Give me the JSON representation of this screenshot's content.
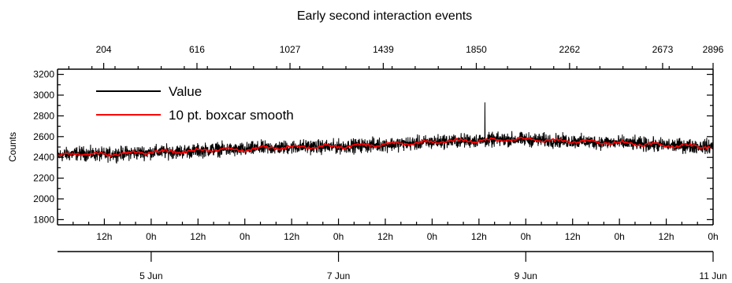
{
  "chart_data": {
    "type": "line",
    "title": "Early second interaction events",
    "ylabel": "Counts",
    "ylim": [
      1750,
      3250
    ],
    "y_ticks": [
      1800,
      2000,
      2200,
      2400,
      2600,
      2800,
      3000,
      3200
    ],
    "y_minor_step": 100,
    "top_axis": {
      "xlim": [
        0,
        2896
      ],
      "ticks": [
        204,
        616,
        1027,
        1439,
        1850,
        2262,
        2673,
        2896
      ]
    },
    "bottom_axis": {
      "time_range": [
        "4 Jun 00:00",
        "11 Jun 00:00"
      ],
      "hour_labels": [
        "12h",
        "0h",
        "12h",
        "0h",
        "12h",
        "0h",
        "12h",
        "0h",
        "12h",
        "0h",
        "12h",
        "0h",
        "12h",
        "0h"
      ],
      "day_labels": [
        "5 Jun",
        "7 Jun",
        "9 Jun",
        "11 Jun"
      ]
    },
    "legend": {
      "position": "top-left"
    },
    "colors": {
      "value": "#000000",
      "smooth": "#ff0000"
    },
    "series": [
      {
        "name": "Value",
        "x": [
          0,
          100,
          200,
          300,
          400,
          500,
          600,
          700,
          800,
          900,
          1000,
          1100,
          1200,
          1300,
          1400,
          1500,
          1600,
          1700,
          1800,
          1900,
          2000,
          2100,
          2200,
          2300,
          2400,
          2500,
          2600,
          2700,
          2800,
          2896
        ],
        "y": [
          2420,
          2440,
          2425,
          2440,
          2450,
          2455,
          2460,
          2480,
          2470,
          2490,
          2495,
          2505,
          2500,
          2510,
          2520,
          2530,
          2540,
          2555,
          2560,
          2565,
          2575,
          2570,
          2560,
          2555,
          2545,
          2540,
          2525,
          2515,
          2510,
          2505
        ],
        "noise_amplitude": 70,
        "spike": {
          "x": 1888,
          "y": 2930
        }
      },
      {
        "name": "10 pt. boxcar smooth",
        "x": [
          0,
          100,
          200,
          300,
          400,
          500,
          600,
          700,
          800,
          900,
          1000,
          1100,
          1200,
          1300,
          1400,
          1500,
          1600,
          1700,
          1800,
          1900,
          2000,
          2100,
          2200,
          2300,
          2400,
          2500,
          2600,
          2700,
          2800,
          2896
        ],
        "y": [
          2420,
          2440,
          2425,
          2440,
          2450,
          2455,
          2460,
          2480,
          2470,
          2490,
          2495,
          2505,
          2500,
          2510,
          2520,
          2530,
          2540,
          2555,
          2560,
          2565,
          2575,
          2570,
          2560,
          2555,
          2545,
          2540,
          2525,
          2515,
          2510,
          2505
        ],
        "noise_amplitude": 22
      }
    ]
  }
}
